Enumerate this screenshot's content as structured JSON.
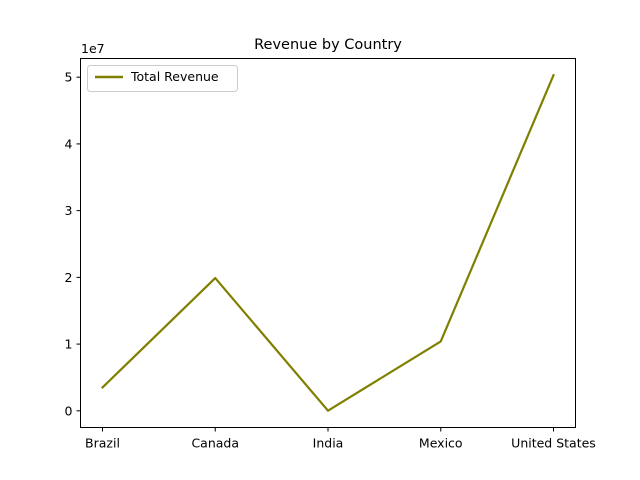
{
  "chart_data": {
    "type": "line",
    "title": "Revenue by Country",
    "categories": [
      "Brazil",
      "Canada",
      "India",
      "Mexico",
      "United States"
    ],
    "series": [
      {
        "name": "Total Revenue",
        "values": [
          3500000,
          19900000,
          20000,
          10400000,
          50300000
        ],
        "color": "#808000"
      }
    ],
    "y_ticks": [
      0,
      1,
      2,
      3,
      4,
      5
    ],
    "y_multiplier": 10000000,
    "y_offset_label": "1e7",
    "ylim": [
      -2500000,
      52800000
    ],
    "grid": false,
    "legend_position": "top-left",
    "xlabel": "",
    "ylabel": ""
  }
}
